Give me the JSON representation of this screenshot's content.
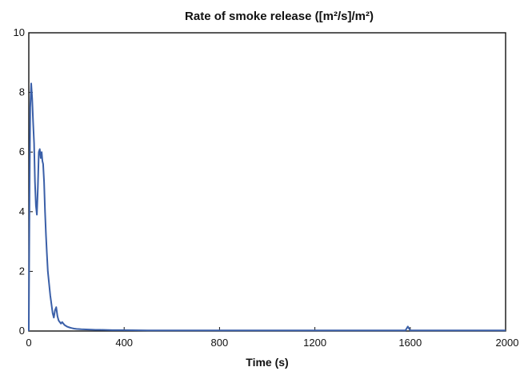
{
  "chart_data": {
    "type": "line",
    "title": "Rate of smoke release ([m²/s]/m²)",
    "xlabel": "Time (s)",
    "ylabel": "",
    "xlim": [
      0,
      2000
    ],
    "ylim": [
      0,
      10
    ],
    "x_ticks": [
      0,
      400,
      800,
      1200,
      1600,
      2000
    ],
    "y_ticks": [
      0,
      2,
      4,
      6,
      8,
      10
    ],
    "grid": false,
    "legend": "none",
    "line_color": "#3a5fa8",
    "series": [
      {
        "x": [
          0,
          3,
          6,
          10,
          14,
          18,
          22,
          26,
          30,
          34,
          38,
          42,
          46,
          50,
          54,
          57,
          60,
          64,
          68,
          72,
          76,
          80,
          85,
          90,
          95,
          100,
          105,
          110,
          115,
          120,
          125,
          130,
          135,
          140,
          145,
          150,
          160,
          170,
          180,
          190,
          200,
          220,
          250,
          280,
          300,
          350,
          400,
          500,
          600,
          800,
          1000,
          1200,
          1400,
          1580,
          1590,
          1600,
          1800,
          2000
        ],
        "y": [
          0,
          4.5,
          7.5,
          8.3,
          7.8,
          7.0,
          6.3,
          5.0,
          4.2,
          3.9,
          4.8,
          6.0,
          6.1,
          5.8,
          6.0,
          5.7,
          5.6,
          5.0,
          4.0,
          3.2,
          2.6,
          2.0,
          1.6,
          1.2,
          0.9,
          0.6,
          0.45,
          0.7,
          0.8,
          0.5,
          0.35,
          0.3,
          0.25,
          0.3,
          0.25,
          0.2,
          0.15,
          0.12,
          0.1,
          0.08,
          0.07,
          0.06,
          0.05,
          0.04,
          0.04,
          0.03,
          0.03,
          0.02,
          0.02,
          0.02,
          0.02,
          0.02,
          0.02,
          0.02,
          0.15,
          0.02,
          0.02,
          0.02
        ]
      }
    ]
  }
}
